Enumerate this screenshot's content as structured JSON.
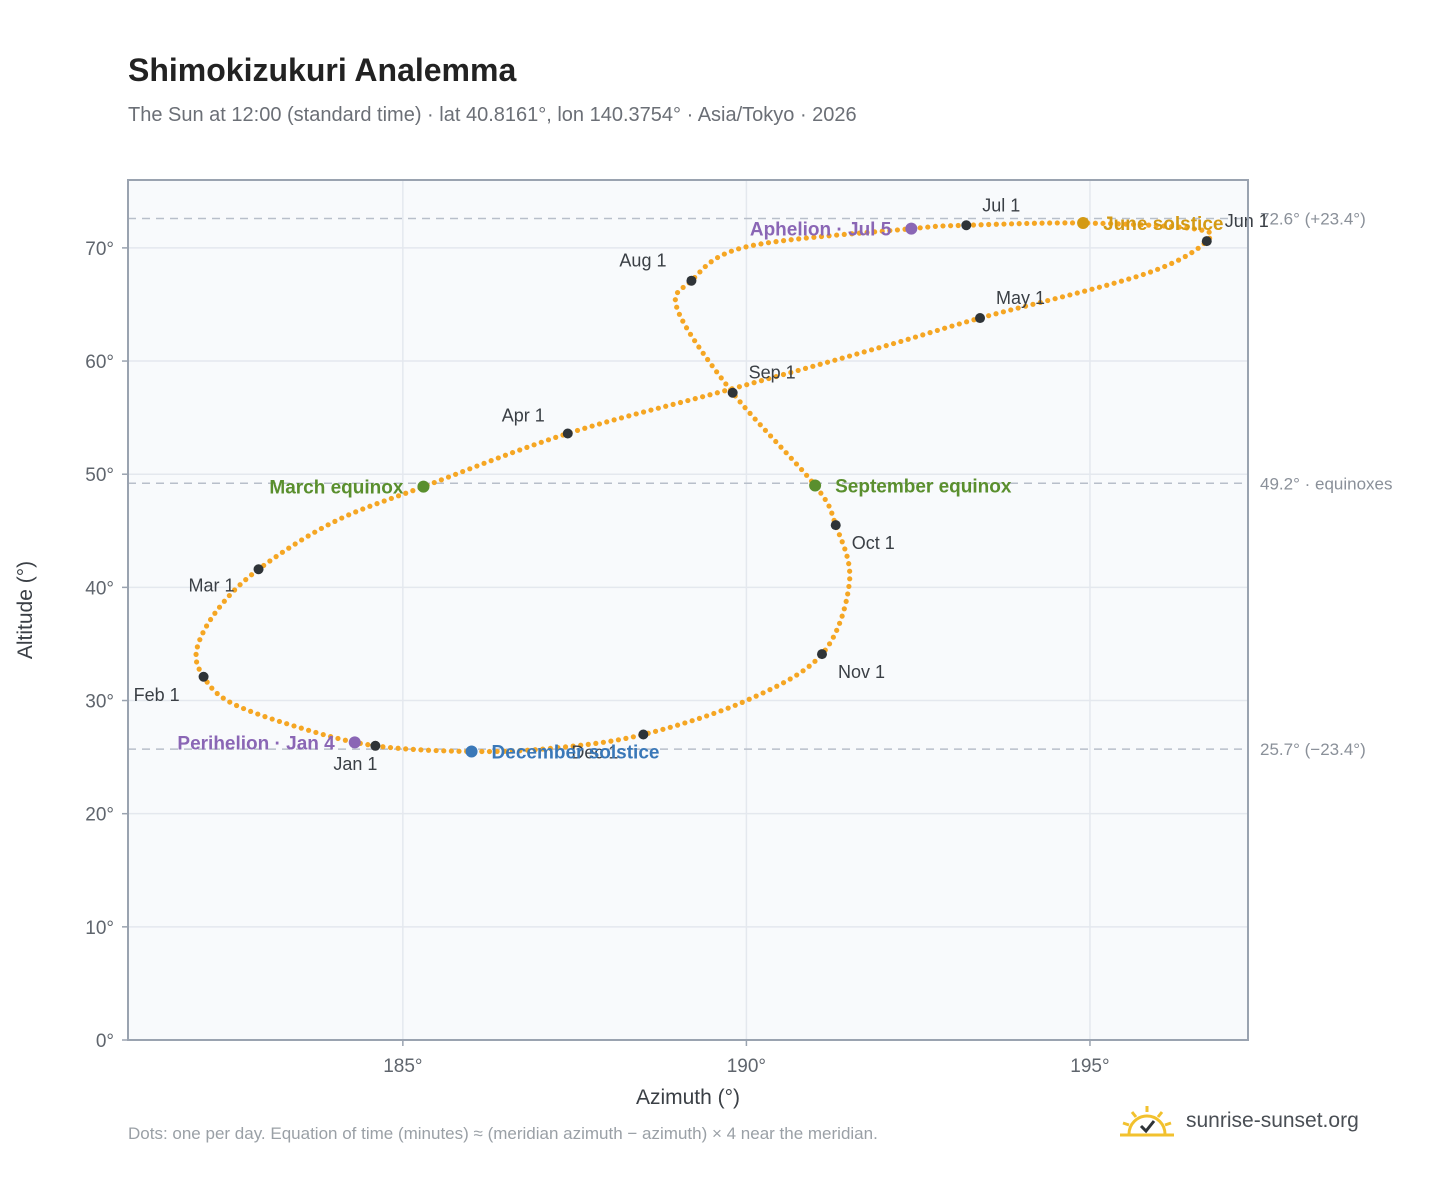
{
  "title": "Shimokizukuri Analemma",
  "subtitle": "The Sun at 12:00 (standard time) · lat 40.8161°, lon 140.3754° · Asia/Tokyo · 2026",
  "footnote": "Dots: one per day. Equation of time (minutes) ≈ (meridian azimuth − azimuth) × 4 near the meridian.",
  "brand": "sunrise-sunset.org",
  "chart_data": {
    "type": "scatter",
    "xlabel": "Azimuth (°)",
    "ylabel": "Altitude (°)",
    "xlim": [
      181.0,
      197.3
    ],
    "ylim": [
      0,
      76
    ],
    "xticks": [
      185,
      190,
      195
    ],
    "xtick_labels": [
      "185°",
      "190°",
      "195°"
    ],
    "yticks": [
      0,
      10,
      20,
      30,
      40,
      50,
      60,
      70
    ],
    "ytick_labels": [
      "0°",
      "10°",
      "20°",
      "30°",
      "40°",
      "50°",
      "60°",
      "70°"
    ],
    "grid": true,
    "reference_lines": [
      {
        "y": 72.6,
        "label": "72.6° (+23.4°)"
      },
      {
        "y": 49.2,
        "label": "49.2° · equinoxes"
      },
      {
        "y": 25.7,
        "label": "25.7° (−23.4°)"
      }
    ],
    "month_markers": [
      {
        "label": "Jan 1",
        "az": 184.6,
        "alt": 26.0
      },
      {
        "label": "Feb 1",
        "az": 182.1,
        "alt": 32.1
      },
      {
        "label": "Mar 1",
        "az": 182.9,
        "alt": 41.6
      },
      {
        "label": "Apr 1",
        "az": 187.4,
        "alt": 53.6
      },
      {
        "label": "May 1",
        "az": 193.4,
        "alt": 63.8
      },
      {
        "label": "Jun 1",
        "az": 196.7,
        "alt": 70.6
      },
      {
        "label": "Jul 1",
        "az": 193.2,
        "alt": 72.0
      },
      {
        "label": "Aug 1",
        "az": 189.2,
        "alt": 67.1
      },
      {
        "label": "Sep 1",
        "az": 189.8,
        "alt": 57.2
      },
      {
        "label": "Oct 1",
        "az": 191.3,
        "alt": 45.5
      },
      {
        "label": "Nov 1",
        "az": 191.1,
        "alt": 34.1
      },
      {
        "label": "Dec 1",
        "az": 188.5,
        "alt": 27.0
      }
    ],
    "events": [
      {
        "label": "March equinox",
        "az": 185.3,
        "alt": 48.9,
        "color": "#5a8f2e",
        "side": "left"
      },
      {
        "label": "September equinox",
        "az": 191.0,
        "alt": 49.0,
        "color": "#5a8f2e",
        "side": "right"
      },
      {
        "label": "June solstice",
        "az": 194.9,
        "alt": 72.2,
        "color": "#d49a14",
        "side": "right"
      },
      {
        "label": "December solstice",
        "az": 186.0,
        "alt": 25.5,
        "color": "#3a78b8",
        "side": "right"
      },
      {
        "label": "Aphelion · Jul 5",
        "az": 192.4,
        "alt": 71.7,
        "color": "#8a66b5",
        "side": "left"
      },
      {
        "label": "Perihelion · Jan 4",
        "az": 184.3,
        "alt": 26.3,
        "color": "#8a66b5",
        "side": "left"
      }
    ],
    "series": [
      {
        "marker": "dot",
        "color": "#f5a623",
        "points": [
          [
            184.6,
            26.0
          ],
          [
            183.5,
            27.6
          ],
          [
            182.5,
            29.8
          ],
          [
            182.1,
            32.1
          ],
          [
            182.0,
            34.5
          ],
          [
            182.3,
            38.0
          ],
          [
            182.9,
            41.6
          ],
          [
            184.0,
            45.8
          ],
          [
            185.3,
            48.9
          ],
          [
            187.4,
            53.6
          ],
          [
            189.7,
            57.4
          ],
          [
            192.0,
            61.3
          ],
          [
            193.4,
            63.8
          ],
          [
            195.8,
            67.7
          ],
          [
            196.7,
            70.6
          ],
          [
            196.5,
            71.7
          ],
          [
            194.9,
            72.2
          ],
          [
            193.2,
            72.0
          ],
          [
            192.4,
            71.7
          ],
          [
            190.0,
            70.1
          ],
          [
            189.2,
            67.1
          ],
          [
            189.0,
            64.5
          ],
          [
            189.8,
            57.2
          ],
          [
            191.0,
            49.0
          ],
          [
            191.3,
            45.5
          ],
          [
            191.5,
            40.5
          ],
          [
            191.1,
            34.1
          ],
          [
            190.0,
            30.0
          ],
          [
            188.5,
            27.0
          ],
          [
            187.2,
            25.8
          ],
          [
            186.0,
            25.5
          ],
          [
            184.6,
            26.0
          ]
        ]
      }
    ]
  }
}
